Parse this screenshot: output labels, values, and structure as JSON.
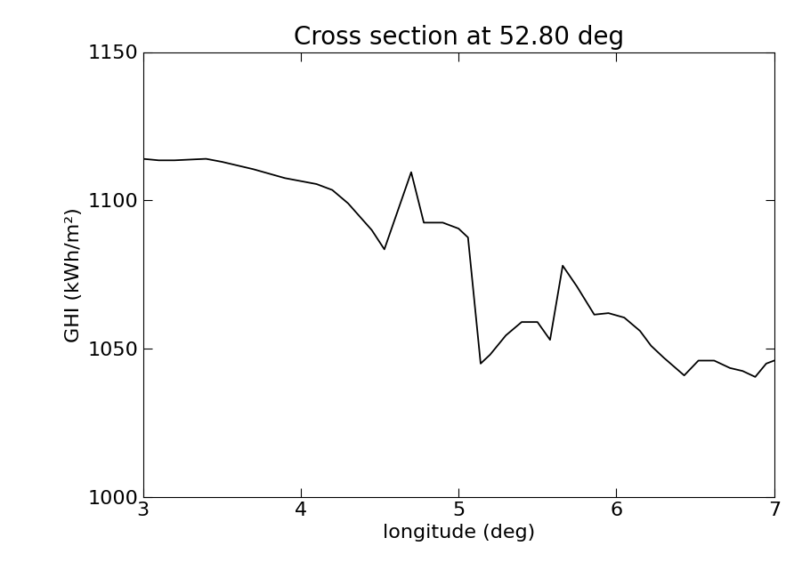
{
  "chart_data": {
    "type": "line",
    "title": "Cross section at 52.80 deg",
    "x_label": "longitude (deg)",
    "y_label": "GHI (kWh/m²)",
    "x": [
      3.0,
      3.1,
      3.2,
      3.4,
      3.5,
      3.7,
      3.9,
      4.0,
      4.1,
      4.2,
      4.3,
      4.35,
      4.45,
      4.53,
      4.7,
      4.78,
      4.9,
      5.0,
      5.06,
      5.14,
      5.2,
      5.3,
      5.4,
      5.5,
      5.58,
      5.66,
      5.75,
      5.86,
      5.95,
      6.05,
      6.15,
      6.22,
      6.3,
      6.43,
      6.52,
      6.62,
      6.72,
      6.8,
      6.88,
      6.95,
      7.0
    ],
    "values": [
      1114,
      1113.5,
      1113.5,
      1114,
      1113,
      1110.5,
      1107.5,
      1106.5,
      1105.5,
      1103.5,
      1099,
      1096,
      1090,
      1083.5,
      1109.5,
      1092.5,
      1092.5,
      1090.5,
      1087.5,
      1045,
      1048,
      1054.5,
      1059,
      1059,
      1053,
      1078,
      1071,
      1061.5,
      1062,
      1060.5,
      1056,
      1051,
      1047,
      1041,
      1046,
      1046,
      1043.5,
      1042.5,
      1040.5,
      1045,
      1046
    ],
    "color": "#000000",
    "xlim": [
      3,
      7
    ],
    "xticks": [
      3,
      4,
      5,
      6,
      7
    ],
    "ylim": [
      1000,
      1150
    ],
    "yticks": [
      1000,
      1050,
      1100,
      1150
    ]
  }
}
